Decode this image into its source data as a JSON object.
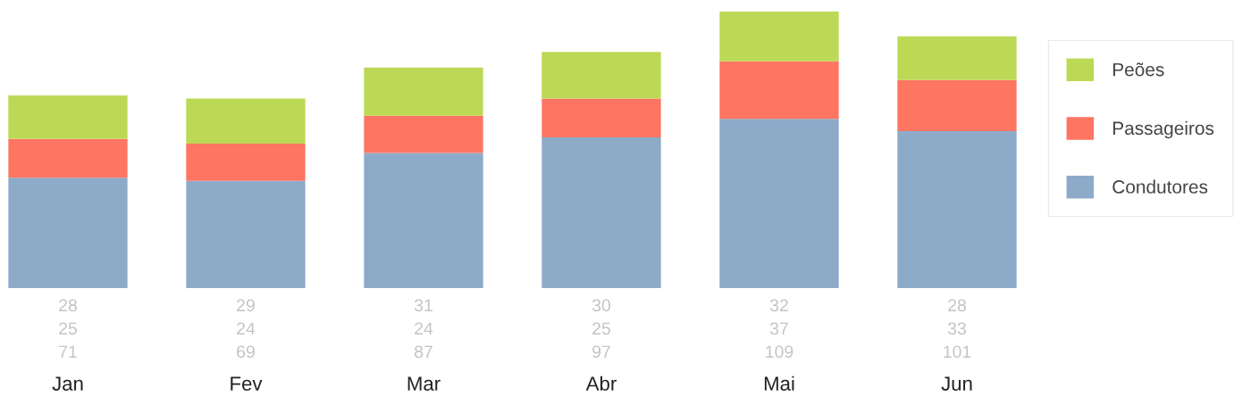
{
  "chart_data": {
    "type": "bar",
    "stacked": true,
    "data_labels": true,
    "legend": "right",
    "categories": [
      "Jan",
      "Fev",
      "Mar",
      "Abr",
      "Mai",
      "Jun"
    ],
    "series": [
      {
        "name": "Condutores",
        "color": "#8eaac9",
        "values": [
          71,
          69,
          87,
          97,
          109,
          101
        ]
      },
      {
        "name": "Passageiros",
        "color": "#fe7562",
        "values": [
          25,
          24,
          24,
          25,
          37,
          33
        ]
      },
      {
        "name": "Peões",
        "color": "#bcd955",
        "values": [
          28,
          29,
          31,
          30,
          32,
          28
        ]
      }
    ]
  }
}
